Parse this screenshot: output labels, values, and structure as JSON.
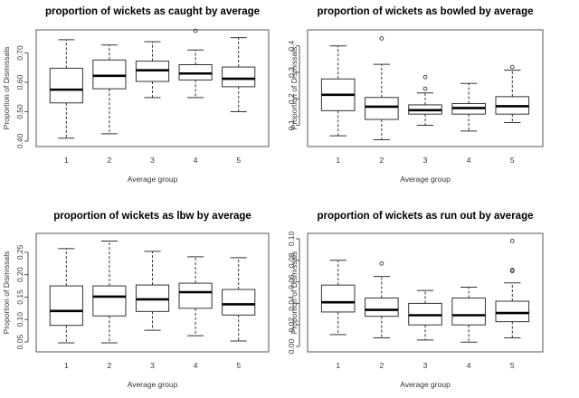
{
  "chart_data": [
    {
      "type": "boxplot",
      "title": "proportion of wickets as caught by average",
      "xlabel": "Average group",
      "ylabel": "Proportion of Dismissals",
      "ylim": [
        0.4,
        0.76
      ],
      "yticks": [
        0.4,
        0.5,
        0.6,
        0.7
      ],
      "ytick_labels": [
        "0.40",
        "0.50",
        "0.60",
        "0.70"
      ],
      "categories": [
        "1",
        "2",
        "3",
        "4",
        "5"
      ],
      "boxes": [
        {
          "whisker_low": 0.41,
          "q1": 0.53,
          "median": 0.575,
          "q3": 0.648,
          "whisker_high": 0.745,
          "outliers": []
        },
        {
          "whisker_low": 0.425,
          "q1": 0.578,
          "median": 0.622,
          "q3": 0.676,
          "whisker_high": 0.727,
          "outliers": []
        },
        {
          "whisker_low": 0.548,
          "q1": 0.603,
          "median": 0.641,
          "q3": 0.672,
          "whisker_high": 0.738,
          "outliers": []
        },
        {
          "whisker_low": 0.548,
          "q1": 0.608,
          "median": 0.63,
          "q3": 0.66,
          "whisker_high": 0.71,
          "outliers": [
            0.775
          ]
        },
        {
          "whisker_low": 0.5,
          "q1": 0.585,
          "median": 0.612,
          "q3": 0.652,
          "whisker_high": 0.752,
          "outliers": []
        }
      ]
    },
    {
      "type": "boxplot",
      "title": "proportion of wickets as bowled by average",
      "xlabel": "Average group",
      "ylabel": "Proportion of Dismissals",
      "ylim": [
        0.04,
        0.44
      ],
      "yticks": [
        0.1,
        0.2,
        0.3,
        0.4
      ],
      "ytick_labels": [
        "0.1",
        "0.2",
        "0.3",
        "0.4"
      ],
      "categories": [
        "1",
        "2",
        "3",
        "4",
        "5"
      ],
      "boxes": [
        {
          "whisker_low": 0.06,
          "q1": 0.155,
          "median": 0.215,
          "q3": 0.275,
          "whisker_high": 0.4,
          "outliers": []
        },
        {
          "whisker_low": 0.045,
          "q1": 0.122,
          "median": 0.17,
          "q3": 0.205,
          "whisker_high": 0.33,
          "outliers": [
            0.428
          ]
        },
        {
          "whisker_low": 0.1,
          "q1": 0.142,
          "median": 0.157,
          "q3": 0.177,
          "whisker_high": 0.222,
          "outliers": [
            0.238,
            0.282
          ]
        },
        {
          "whisker_low": 0.078,
          "q1": 0.142,
          "median": 0.165,
          "q3": 0.182,
          "whisker_high": 0.258,
          "outliers": []
        },
        {
          "whisker_low": 0.11,
          "q1": 0.142,
          "median": 0.172,
          "q3": 0.208,
          "whisker_high": 0.308,
          "outliers": [
            0.32
          ]
        }
      ]
    },
    {
      "type": "boxplot",
      "title": "proportion of wickets as lbw by average",
      "xlabel": "Average group",
      "ylabel": "Proportion of Dismissals",
      "ylim": [
        0.04,
        0.28
      ],
      "yticks": [
        0.05,
        0.1,
        0.15,
        0.2,
        0.25
      ],
      "ytick_labels": [
        "0.05",
        "0.10",
        "0.15",
        "0.20",
        "0.25"
      ],
      "categories": [
        "1",
        "2",
        "3",
        "4",
        "5"
      ],
      "boxes": [
        {
          "whisker_low": 0.048,
          "q1": 0.087,
          "median": 0.119,
          "q3": 0.175,
          "whisker_high": 0.258,
          "outliers": []
        },
        {
          "whisker_low": 0.048,
          "q1": 0.108,
          "median": 0.151,
          "q3": 0.175,
          "whisker_high": 0.275,
          "outliers": []
        },
        {
          "whisker_low": 0.076,
          "q1": 0.118,
          "median": 0.145,
          "q3": 0.177,
          "whisker_high": 0.252,
          "outliers": []
        },
        {
          "whisker_low": 0.064,
          "q1": 0.125,
          "median": 0.161,
          "q3": 0.181,
          "whisker_high": 0.24,
          "outliers": []
        },
        {
          "whisker_low": 0.052,
          "q1": 0.11,
          "median": 0.134,
          "q3": 0.167,
          "whisker_high": 0.238,
          "outliers": []
        }
      ]
    },
    {
      "type": "boxplot",
      "title": "proportion of wickets as run out by average",
      "xlabel": "Average group",
      "ylabel": "Proportion of Dismissals",
      "ylim": [
        0.0,
        0.1
      ],
      "yticks": [
        0.0,
        0.02,
        0.04,
        0.06,
        0.08,
        0.1
      ],
      "ytick_labels": [
        "0.00",
        "0.02",
        "0.04",
        "0.06",
        "0.08",
        "0.10"
      ],
      "categories": [
        "1",
        "2",
        "3",
        "4",
        "5"
      ],
      "boxes": [
        {
          "whisker_low": 0.011,
          "q1": 0.032,
          "median": 0.041,
          "q3": 0.057,
          "whisker_high": 0.08,
          "outliers": []
        },
        {
          "whisker_low": 0.008,
          "q1": 0.028,
          "median": 0.034,
          "q3": 0.045,
          "whisker_high": 0.065,
          "outliers": [
            0.077
          ]
        },
        {
          "whisker_low": 0.006,
          "q1": 0.02,
          "median": 0.029,
          "q3": 0.04,
          "whisker_high": 0.052,
          "outliers": []
        },
        {
          "whisker_low": 0.004,
          "q1": 0.02,
          "median": 0.029,
          "q3": 0.045,
          "whisker_high": 0.055,
          "outliers": []
        },
        {
          "whisker_low": 0.008,
          "q1": 0.023,
          "median": 0.031,
          "q3": 0.042,
          "whisker_high": 0.059,
          "outliers": [
            0.07,
            0.071,
            0.098
          ]
        }
      ]
    }
  ]
}
